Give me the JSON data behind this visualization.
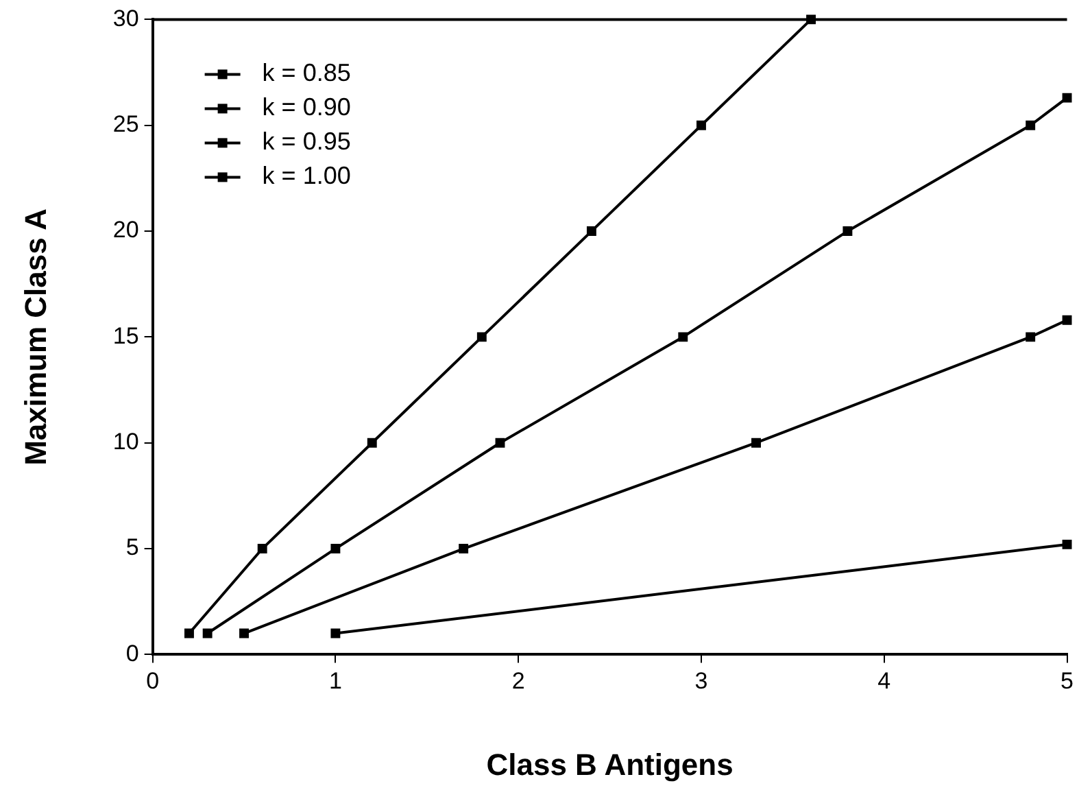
{
  "chart_data": {
    "type": "line",
    "xlabel": "Class B Antigens",
    "ylabel": "Maximum Class A",
    "series": [
      {
        "name": "k = 0.85",
        "color": "#000000",
        "x": [
          0.2,
          0.6,
          1.2,
          1.8,
          2.4,
          3.0,
          3.6
        ],
        "values": [
          1,
          5,
          10,
          15,
          20,
          25,
          30
        ]
      },
      {
        "name": "k = 0.90",
        "color": "#000000",
        "x": [
          0.3,
          1.0,
          1.9,
          2.9,
          3.8,
          4.8,
          5.0
        ],
        "values": [
          1,
          5,
          10,
          15,
          20,
          25,
          26.3
        ]
      },
      {
        "name": "k = 0.95",
        "color": "#000000",
        "x": [
          0.5,
          1.7,
          3.3,
          4.8,
          5.0
        ],
        "values": [
          1,
          5,
          10,
          15,
          15.8
        ]
      },
      {
        "name": "k = 1.00",
        "color": "#000000",
        "x": [
          1.0,
          5.0
        ],
        "values": [
          1,
          5.2
        ]
      }
    ],
    "xlim": [
      0,
      5
    ],
    "xticks": [
      0,
      1,
      2,
      3,
      4,
      5
    ],
    "ylim": [
      0,
      30
    ],
    "yticks": [
      0,
      5,
      10,
      15,
      20,
      25,
      30
    ],
    "grid": false,
    "legend": "top left",
    "marker": "square",
    "line_style": "solid"
  }
}
